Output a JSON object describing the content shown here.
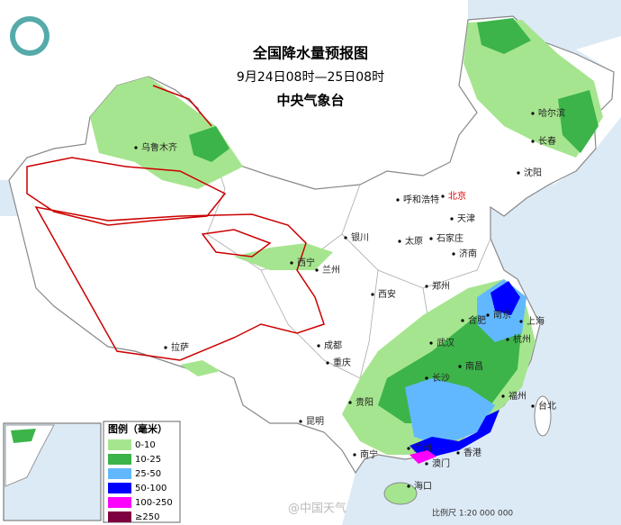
{
  "header": {
    "title": "全国降水量预报图",
    "subtitle": "9月24日08时—25日08时",
    "issuer": "中央气象台"
  },
  "cities": [
    {
      "name": "哈尔滨"
    },
    {
      "name": "长春"
    },
    {
      "name": "沈阳"
    },
    {
      "name": "乌鲁木齐"
    },
    {
      "name": "呼和浩特"
    },
    {
      "name": "北京"
    },
    {
      "name": "天津"
    },
    {
      "name": "石家庄"
    },
    {
      "name": "太原"
    },
    {
      "name": "银川"
    },
    {
      "name": "西宁"
    },
    {
      "name": "兰州"
    },
    {
      "name": "济南"
    },
    {
      "name": "郑州"
    },
    {
      "name": "西安"
    },
    {
      "name": "南京"
    },
    {
      "name": "合肥"
    },
    {
      "name": "上海"
    },
    {
      "name": "杭州"
    },
    {
      "name": "武汉"
    },
    {
      "name": "成都"
    },
    {
      "name": "重庆"
    },
    {
      "name": "长沙"
    },
    {
      "name": "南昌"
    },
    {
      "name": "福州"
    },
    {
      "name": "台北"
    },
    {
      "name": "贵阳"
    },
    {
      "name": "昆明"
    },
    {
      "name": "南宁"
    },
    {
      "name": "广州"
    },
    {
      "name": "香港"
    },
    {
      "name": "澳门"
    },
    {
      "name": "海口"
    },
    {
      "name": "拉萨"
    }
  ],
  "legend": {
    "title": "图例（毫米）",
    "items": [
      {
        "label": "0-10",
        "color": "#a6e58f"
      },
      {
        "label": "10-25",
        "color": "#3cb449"
      },
      {
        "label": "25-50",
        "color": "#62b8ff"
      },
      {
        "label": "50-100",
        "color": "#0000fe"
      },
      {
        "label": "100-250",
        "color": "#fe00fe"
      },
      {
        "label": "≥250",
        "color": "#7f0040"
      }
    ]
  },
  "scale": "比例尺 1:20 000 000",
  "watermark": "@中国天气"
}
